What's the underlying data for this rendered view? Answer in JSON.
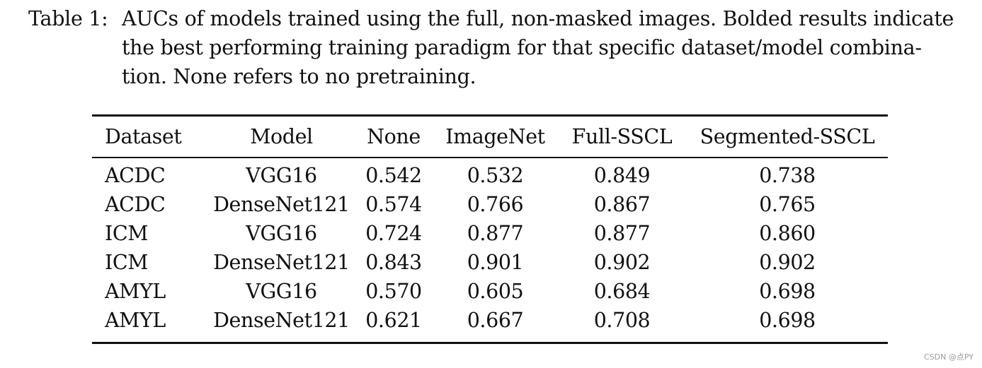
{
  "caption": {
    "label": "Table 1:",
    "lines": [
      "AUCs of models trained using the full, non-masked images. Bolded results indicate",
      "the best performing training paradigm for that specific dataset/model combina-",
      "tion. None refers to no pretraining."
    ]
  },
  "table": {
    "headers": [
      "Dataset",
      "Model",
      "None",
      "ImageNet",
      "Full-SSCL",
      "Segmented-SSCL"
    ],
    "rows": [
      {
        "dataset": "ACDC",
        "model": "VGG16",
        "none": "0.542",
        "imagenet": "0.532",
        "full_sscl": "0.849",
        "segmented_sscl": "0.738"
      },
      {
        "dataset": "ACDC",
        "model": "DenseNet121",
        "none": "0.574",
        "imagenet": "0.766",
        "full_sscl": "0.867",
        "segmented_sscl": "0.765"
      },
      {
        "dataset": "ICM",
        "model": "VGG16",
        "none": "0.724",
        "imagenet": "0.877",
        "full_sscl": "0.877",
        "segmented_sscl": "0.860"
      },
      {
        "dataset": "ICM",
        "model": "DenseNet121",
        "none": "0.843",
        "imagenet": "0.901",
        "full_sscl": "0.902",
        "segmented_sscl": "0.902"
      },
      {
        "dataset": "AMYL",
        "model": "VGG16",
        "none": "0.570",
        "imagenet": "0.605",
        "full_sscl": "0.684",
        "segmented_sscl": "0.698"
      },
      {
        "dataset": "AMYL",
        "model": "DenseNet121",
        "none": "0.621",
        "imagenet": "0.667",
        "full_sscl": "0.708",
        "segmented_sscl": "0.698"
      }
    ]
  },
  "watermark": "CSDN @点PY"
}
